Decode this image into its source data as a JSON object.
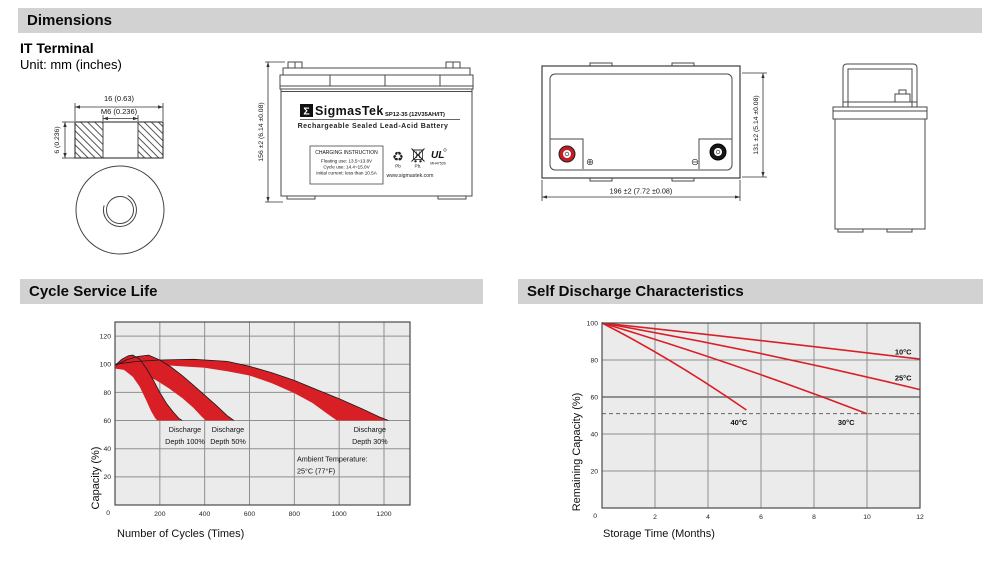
{
  "header": {
    "dimensions_title": "Dimensions",
    "cycle_title": "Cycle Service Life",
    "self_discharge_title": "Self Discharge Characteristics"
  },
  "terminal_section": {
    "heading": "IT Terminal",
    "unit_note": "Unit: mm (inches)",
    "dim_width": "16 (0.63)",
    "dim_thread": "M6 (0.236)",
    "dim_height": "6 (0.236)"
  },
  "front_view": {
    "sigma": "Σ",
    "brand": "SigmasTek",
    "model": "SP12-35 (12V35AH/IT)",
    "type_line": "Rechargeable Sealed Lead-Acid Battery",
    "charging": {
      "title": "CHARGING INSTRUCTION",
      "line1": "Floating use: 13.5~13.8V",
      "line2": "Cycle use: 14.4~15.0V",
      "line3": "Initial current: less than 10.5A"
    },
    "pb1": "Pb",
    "pb2": "Pb.",
    "ul_text": "UL",
    "ul_code": "MH47539",
    "website": "www.sigmastek.com",
    "dim_height": "156 ±2 (6.14 ±0.08)"
  },
  "top_view": {
    "dim_width": "196 ±2 (7.72 ±0.08)",
    "dim_depth": "131 ±2 (5.14 ±0.08)",
    "positive": "⊕",
    "negative": "⊖"
  },
  "colors": {
    "header_bar": "#d2d2d2",
    "red": "#d91f26",
    "plot_bg": "#ebebeb",
    "grid": "#8f8f8f"
  },
  "chart_data": [
    {
      "type": "area",
      "title": "Cycle Service Life",
      "xlabel": "Number of Cycles (Times)",
      "ylabel": "Capacity (%)",
      "xlim": [
        0,
        1316
      ],
      "ylim": [
        0,
        130
      ],
      "xticks": [
        200,
        400,
        600,
        800,
        1000,
        1200
      ],
      "yticks": [
        20,
        40,
        60,
        80,
        100,
        120
      ],
      "origin_label": "0",
      "grid": "on",
      "band_color": "#d91f26",
      "grid_color": "#8f8f8f",
      "bg": "#ebebeb",
      "ylabel_pos": [
        69,
        165
      ],
      "xlabel_pos": [
        87,
        224
      ],
      "bands": [
        {
          "name": "Discharge Depth 100%",
          "upper": [
            [
              0,
              99
            ],
            [
              30,
              103.5
            ],
            [
              60,
              106
            ],
            [
              80,
              106.5
            ],
            [
              110,
              103.5
            ],
            [
              140,
              97
            ],
            [
              170,
              89
            ],
            [
              200,
              80
            ],
            [
              230,
              72
            ],
            [
              260,
              66
            ],
            [
              285,
              61.5
            ],
            [
              300,
              60
            ]
          ],
          "lower": [
            [
              0,
              97
            ],
            [
              40,
              96
            ],
            [
              80,
              91
            ],
            [
              110,
              84
            ],
            [
              140,
              74
            ],
            [
              160,
              67
            ],
            [
              180,
              61.5
            ],
            [
              190,
              60
            ]
          ]
        },
        {
          "name": "Discharge Depth 50%",
          "upper": [
            [
              0,
              99
            ],
            [
              50,
              103
            ],
            [
              100,
              105.5
            ],
            [
              150,
              106.5
            ],
            [
              200,
              103
            ],
            [
              250,
              98
            ],
            [
              300,
              92
            ],
            [
              350,
              85
            ],
            [
              400,
              78
            ],
            [
              450,
              71
            ],
            [
              500,
              63.5
            ],
            [
              530,
              60
            ]
          ],
          "lower": [
            [
              0,
              97
            ],
            [
              60,
              96
            ],
            [
              120,
              93
            ],
            [
              180,
              89
            ],
            [
              240,
              83
            ],
            [
              300,
              76
            ],
            [
              350,
              69
            ],
            [
              385,
              63
            ],
            [
              405,
              60
            ]
          ]
        },
        {
          "name": "Discharge Depth 30%",
          "upper": [
            [
              0,
              100
            ],
            [
              100,
              102
            ],
            [
              200,
              103
            ],
            [
              350,
              103.5
            ],
            [
              500,
              102
            ],
            [
              600,
              98.5
            ],
            [
              700,
              94
            ],
            [
              800,
              88.5
            ],
            [
              900,
              82
            ],
            [
              1000,
              75.5
            ],
            [
              1100,
              68.5
            ],
            [
              1180,
              62.5
            ],
            [
              1220,
              60
            ]
          ],
          "lower": [
            [
              0,
              97
            ],
            [
              100,
              98.5
            ],
            [
              250,
              99
            ],
            [
              400,
              97.5
            ],
            [
              500,
              95
            ],
            [
              600,
              92
            ],
            [
              700,
              86.5
            ],
            [
              800,
              79.5
            ],
            [
              880,
              72.5
            ],
            [
              950,
              64.5
            ],
            [
              990,
              60
            ]
          ]
        }
      ],
      "annotations": [
        {
          "lines": [
            "Discharge",
            "Depth 100%"
          ],
          "x": 312,
          "y": 52,
          "align": "middle"
        },
        {
          "lines": [
            "Discharge",
            "Depth 50%"
          ],
          "x": 504,
          "y": 52,
          "align": "middle"
        },
        {
          "lines": [
            "Discharge",
            "Depth 30%"
          ],
          "x": 1137,
          "y": 52,
          "align": "middle"
        },
        {
          "lines": [
            "Ambient Temperature:",
            "25°C (77°F)"
          ],
          "x": 812,
          "y": 31,
          "align": "start"
        }
      ]
    },
    {
      "type": "line",
      "title": "Self Discharge Characteristics",
      "xlabel": "Storage Time (Months)",
      "ylabel": "Remaining Capacity (%)",
      "xlim": [
        0,
        12
      ],
      "ylim": [
        0,
        100
      ],
      "xticks": [
        2,
        4,
        6,
        8,
        10,
        12
      ],
      "yticks": [
        20,
        40,
        60,
        80,
        100
      ],
      "origin_label": "0",
      "grid": "on",
      "line_color": "#d91f26",
      "grid_color": "#8f8f8f",
      "bg": "#ebebeb",
      "emph_gridline_y": 60,
      "dashed_line_y": 51,
      "ylabel_pos": [
        62,
        139
      ],
      "xlabel_pos": [
        85,
        224
      ],
      "series": [
        {
          "name": "10°C",
          "points": [
            [
              0,
              100
            ],
            [
              6,
              90.5
            ],
            [
              12,
              80.5
            ]
          ],
          "label_x": 11.05,
          "label_y": 83
        },
        {
          "name": "25°C",
          "points": [
            [
              0,
              100
            ],
            [
              6,
              83.5
            ],
            [
              12,
              64
            ]
          ],
          "label_x": 11.05,
          "label_y": 69
        },
        {
          "name": "30°C",
          "points": [
            [
              0,
              100
            ],
            [
              5,
              77
            ],
            [
              10,
              51
            ]
          ],
          "label_x": 8.9,
          "label_y": 45
        },
        {
          "name": "40°C",
          "points": [
            [
              0,
              100
            ],
            [
              2.7,
              78.5
            ],
            [
              5.45,
              53
            ]
          ],
          "label_x": 4.85,
          "label_y": 45
        }
      ]
    }
  ]
}
